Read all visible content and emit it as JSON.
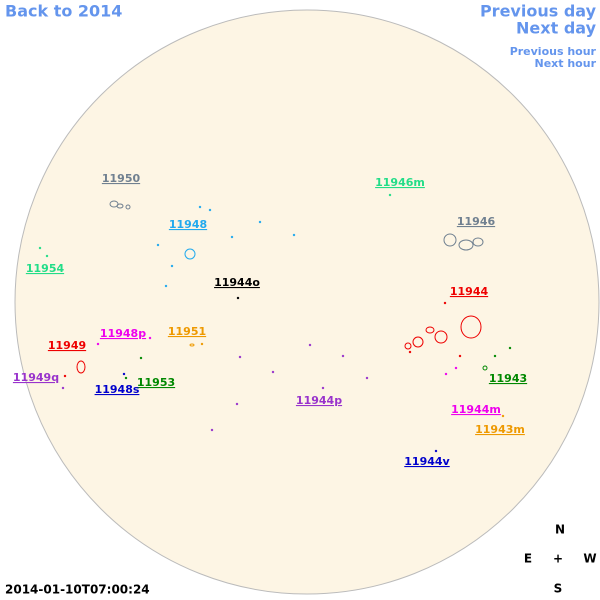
{
  "nav": {
    "back": "Back to 2014",
    "previous_day": "Previous day",
    "next_day": "Next day",
    "previous_hour": "Previous hour",
    "next_hour": "Next hour"
  },
  "regions": [
    {
      "label": "11950",
      "color": "#708090"
    },
    {
      "label": "11946m",
      "color": "#22dd88"
    },
    {
      "label": "11948",
      "color": "#22aaee"
    },
    {
      "label": "11946",
      "color": "#708090"
    },
    {
      "label": "11954",
      "color": "#22dd88"
    },
    {
      "label": "11944o",
      "color": "#000000"
    },
    {
      "label": "11944",
      "color": "#ee0000"
    },
    {
      "label": "11948p",
      "color": "#ee00ee"
    },
    {
      "label": "11951",
      "color": "#ee9900"
    },
    {
      "label": "11949",
      "color": "#ee0000"
    },
    {
      "label": "11949q",
      "color": "#9933cc"
    },
    {
      "label": "11953",
      "color": "#008800"
    },
    {
      "label": "11948s",
      "color": "#0000cc"
    },
    {
      "label": "11943",
      "color": "#008800"
    },
    {
      "label": "11944p",
      "color": "#9933cc"
    },
    {
      "label": "11944m",
      "color": "#ee00ee"
    },
    {
      "label": "11943m",
      "color": "#ee9900"
    },
    {
      "label": "11944v",
      "color": "#0000cc"
    }
  ],
  "timestamp": "2014-01-10T07:00:24",
  "compass": {
    "north": "N",
    "east": "E",
    "center": "+",
    "west": "W",
    "south": "S"
  }
}
